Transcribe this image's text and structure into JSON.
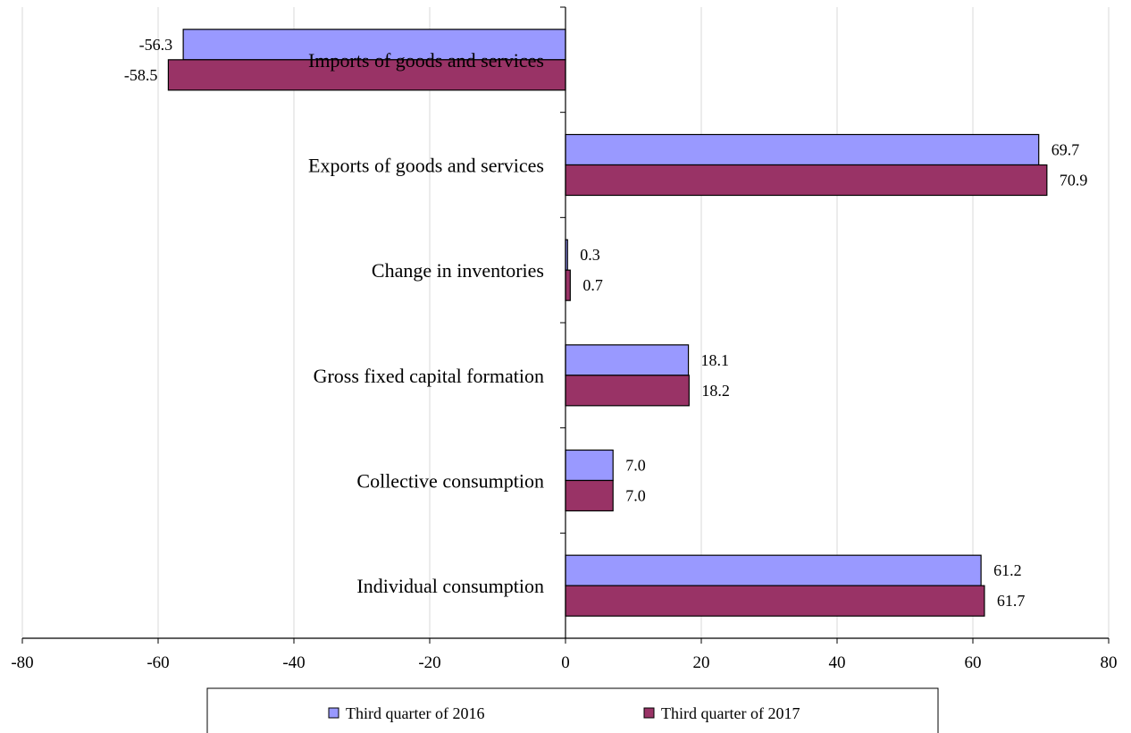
{
  "chart_data": {
    "type": "bar",
    "orientation": "horizontal",
    "categories": [
      "Imports of goods and services",
      "Exports of goods and services",
      "Change in inventories",
      "Gross fixed capital formation",
      "Collective consumption",
      "Individual consumption"
    ],
    "series": [
      {
        "name": "Third quarter of 2016",
        "color": "#9999ff",
        "values": [
          -56.3,
          69.7,
          0.3,
          18.1,
          7.0,
          61.2
        ]
      },
      {
        "name": "Third quarter of 2017",
        "color": "#993366",
        "values": [
          -58.5,
          70.9,
          0.7,
          18.2,
          7.0,
          61.7
        ]
      }
    ],
    "xlim": [
      -80,
      80
    ],
    "xticks": [
      -80,
      -60,
      -40,
      -20,
      0,
      20,
      40,
      60,
      80
    ],
    "grid": true,
    "legend_position": "bottom"
  }
}
